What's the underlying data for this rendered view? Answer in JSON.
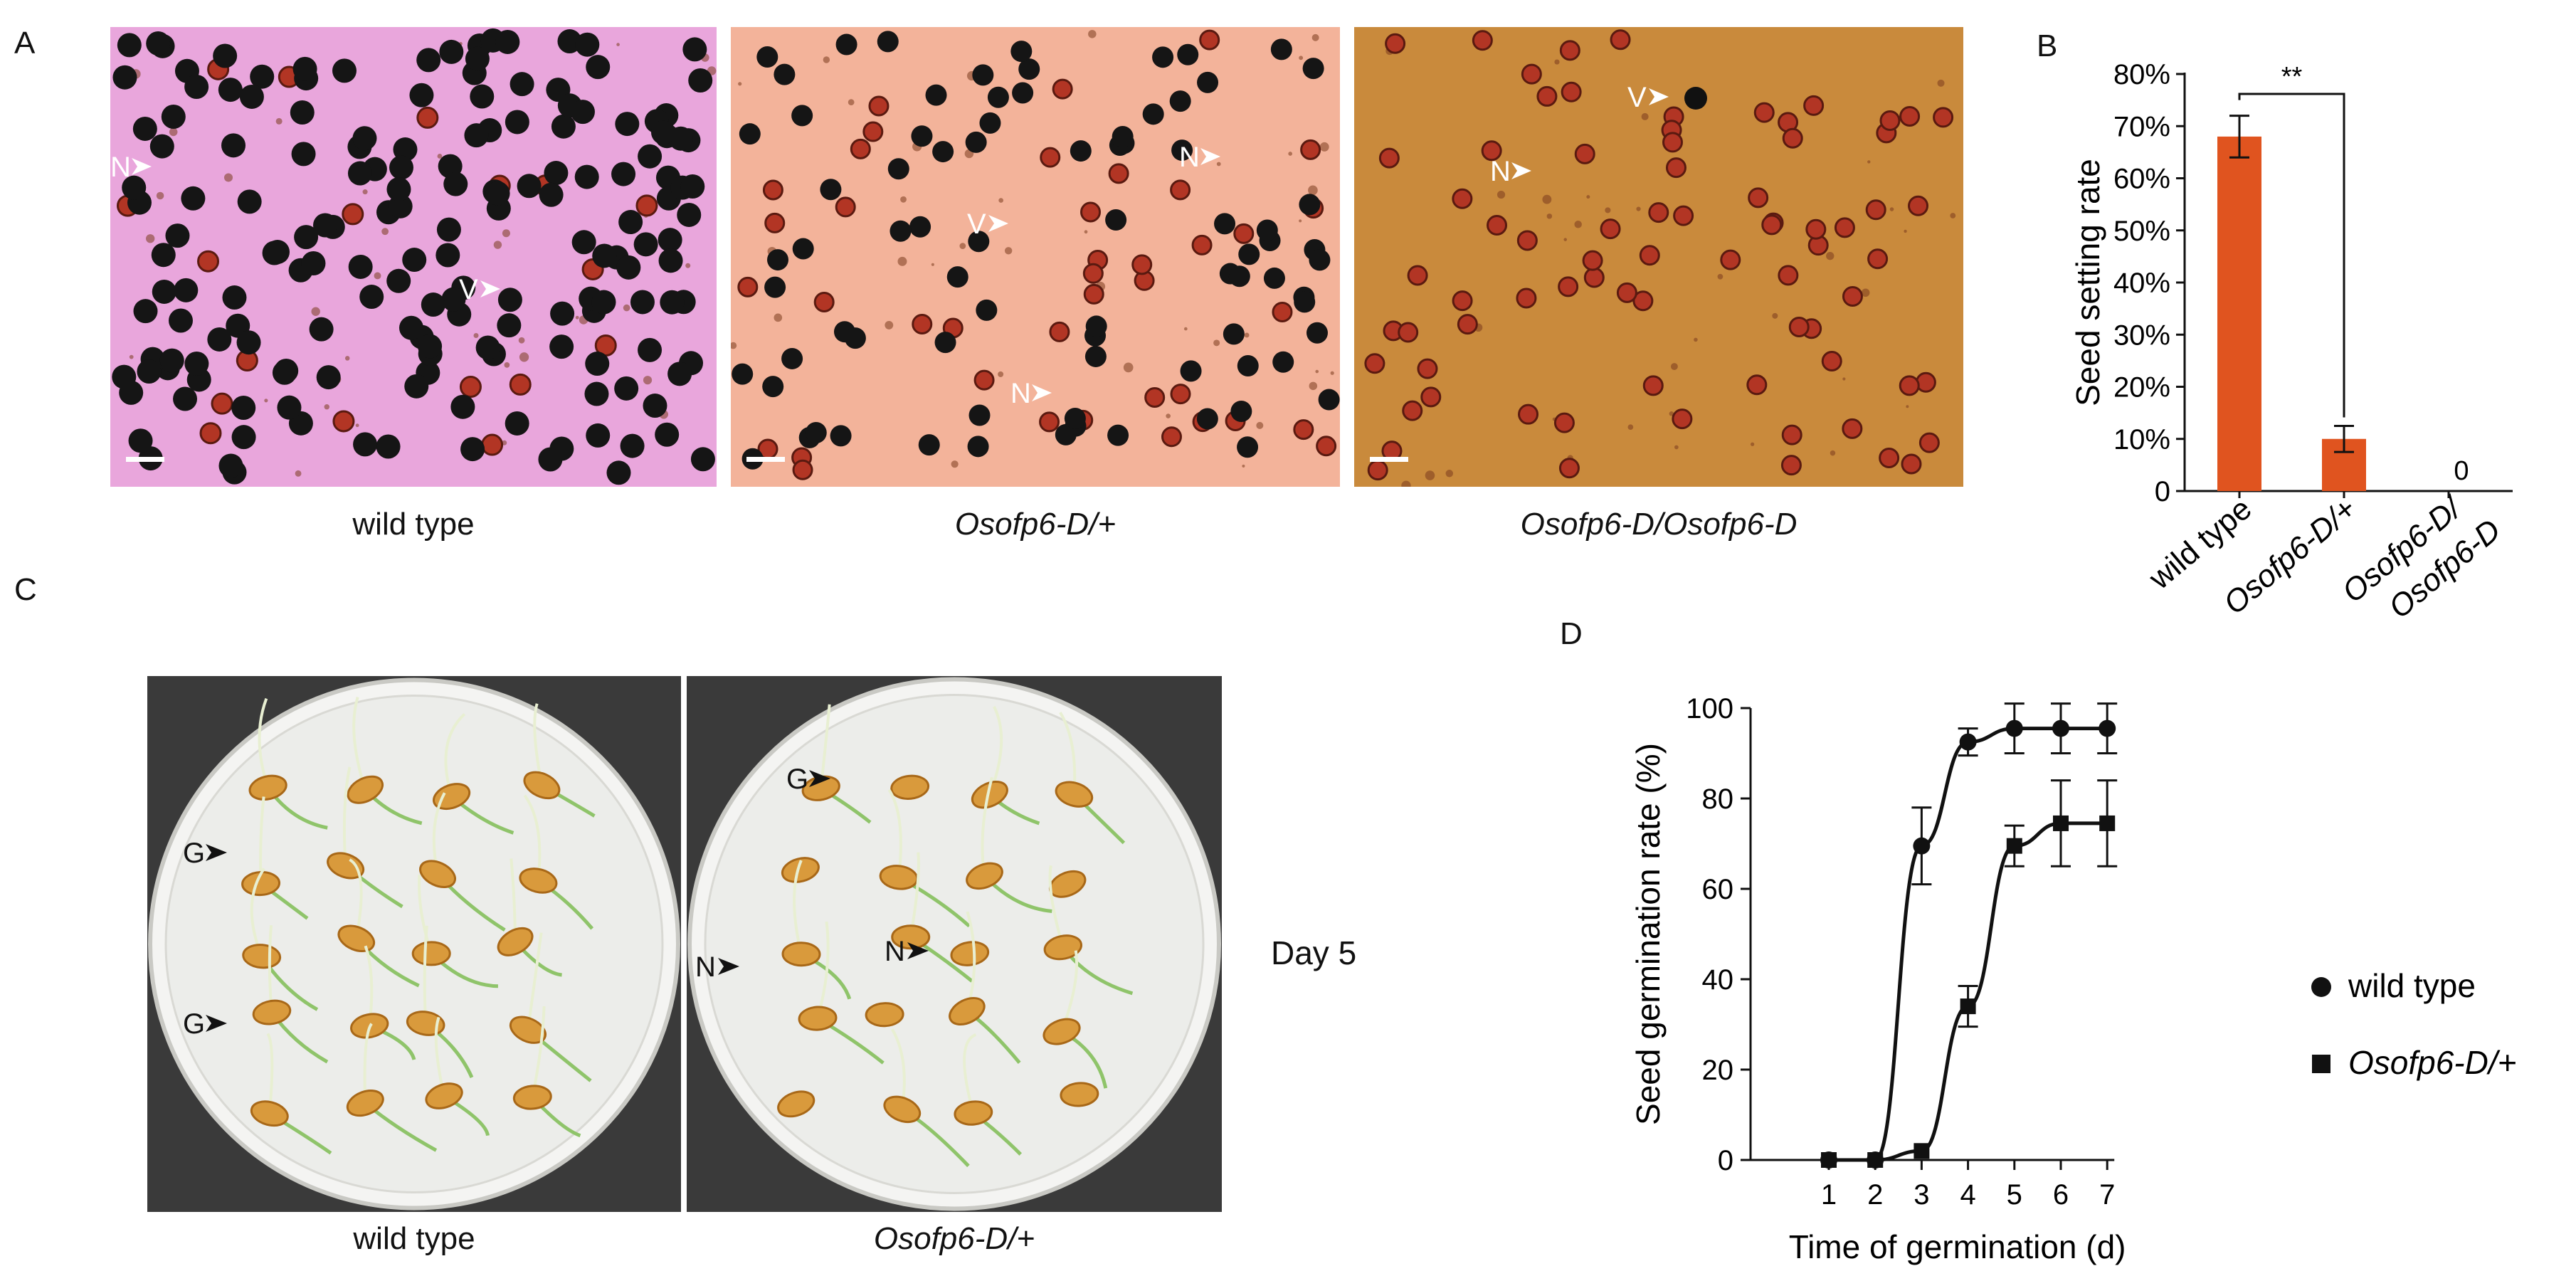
{
  "figure": {
    "panel_labels": {
      "a": "A",
      "b": "B",
      "c": "C",
      "d": "D"
    }
  },
  "panel_a": {
    "captions": [
      "wild type",
      "Osofp6-D/+",
      "Osofp6-D/Osofp6-D"
    ],
    "marks": {
      "viable": "V",
      "nonviable": "N"
    },
    "colors": {
      "wt_bg": "#e9a6dc",
      "het_bg": "#f3b39a",
      "hom_bg": "#c98a3c",
      "viable_pollen": "#151515",
      "nonviable_pollen": "#b23524"
    }
  },
  "panel_b": {
    "chart_data": {
      "type": "bar",
      "categories": [
        "wild type",
        "Osofp6-D/+",
        "Osofp6-D/Osofp6-D"
      ],
      "category_lines": [
        [
          "wild type"
        ],
        [
          "Osofp6-D/+"
        ],
        [
          "Osofp6-D/",
          "Osofp6-D"
        ]
      ],
      "values": [
        68,
        10,
        0
      ],
      "errors": [
        4,
        2.5,
        0
      ],
      "value_annotations": [
        "",
        "",
        "0"
      ],
      "ylabel": "Seed setting rate",
      "ylim": [
        0,
        80
      ],
      "yticks": [
        "0",
        "10%",
        "20%",
        "30%",
        "40%",
        "50%",
        "60%",
        "70%",
        "80%"
      ],
      "significance": "**",
      "bar_color": "#e0541f"
    }
  },
  "panel_c": {
    "captions": [
      "wild type",
      "Osofp6-D/+"
    ],
    "day_label": "Day 5",
    "marks": {
      "germinated": "G",
      "nongerminated": "N"
    }
  },
  "panel_d": {
    "chart_data": {
      "type": "line",
      "x": [
        1,
        2,
        3,
        4,
        5,
        6,
        7
      ],
      "series": [
        {
          "name": "wild type",
          "marker": "circle",
          "values": [
            0,
            0,
            69.5,
            92.5,
            95.5,
            95.5,
            95.5
          ],
          "errors": [
            0,
            0,
            8.5,
            3,
            5.5,
            5.5,
            5.5
          ]
        },
        {
          "name": "Osofp6-D/+",
          "marker": "square",
          "values": [
            0,
            0,
            2,
            34,
            69.5,
            74.5,
            74.5
          ],
          "errors": [
            0,
            0,
            0,
            4.5,
            4.5,
            9.5,
            9.5
          ]
        }
      ],
      "xlabel": "Time of germination (d)",
      "ylabel": "Seed germination rate (%)",
      "ylim": [
        0,
        100
      ],
      "yticks": [
        "0",
        "20",
        "40",
        "60",
        "80",
        "100"
      ],
      "xticks": [
        "1",
        "2",
        "3",
        "4",
        "5",
        "6",
        "7"
      ]
    }
  }
}
